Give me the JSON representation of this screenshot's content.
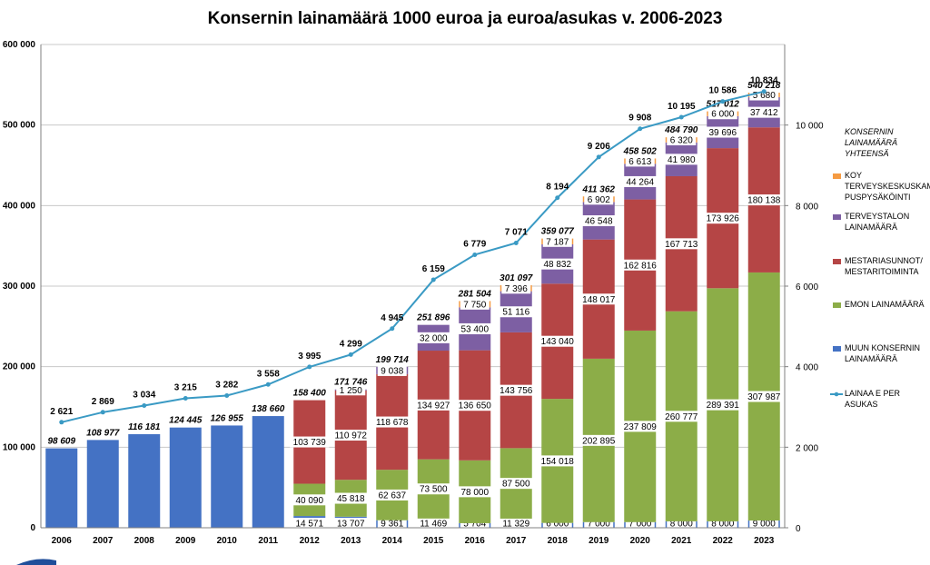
{
  "chart_data": {
    "type": "bar",
    "stacked": true,
    "title": "Konsernin lainamäärä 1000 euroa ja euroa/asukas v. 2006-2023",
    "categories": [
      "2006",
      "2007",
      "2008",
      "2009",
      "2010",
      "2011",
      "2012",
      "2013",
      "2014",
      "2015",
      "2016",
      "2017",
      "2018",
      "2019",
      "2020",
      "2021",
      "2022",
      "2023"
    ],
    "y_left": {
      "min": 0,
      "max": 600000,
      "ticks": [
        "0",
        "100 000",
        "200 000",
        "300 000",
        "400 000",
        "500 000",
        "600 000"
      ]
    },
    "y_right": {
      "min": 0,
      "max": 12000,
      "ticks": [
        "0",
        "2 000",
        "4 000",
        "6 000",
        "8 000",
        "10 000"
      ]
    },
    "grid": true,
    "legend_position": "right",
    "series": [
      {
        "name": "MUUN KONSERNIN LAINAMÄÄRÄ",
        "color": "#4472c4",
        "values": [
          98609,
          108977,
          116181,
          124445,
          126955,
          138660,
          14571,
          13707,
          9361,
          11469,
          5704,
          11329,
          6000,
          7000,
          7000,
          8000,
          8000,
          9000
        ],
        "labels": [
          "",
          "",
          "",
          "",
          "",
          "",
          "14 571",
          "13 707",
          "9 361",
          "11 469",
          "5 704",
          "11 329",
          "6 000",
          "7 000",
          "7 000",
          "8 000",
          "8 000",
          "9 000"
        ]
      },
      {
        "name": "EMON LAINAMÄÄRÄ",
        "color": "#8cad48",
        "values": [
          0,
          0,
          0,
          0,
          0,
          0,
          40090,
          45818,
          62637,
          73500,
          78000,
          87500,
          154018,
          202895,
          237809,
          260777,
          289391,
          307987
        ],
        "labels": [
          "",
          "",
          "",
          "",
          "",
          "",
          "40 090",
          "45 818",
          "62 637",
          "73 500",
          "78 000",
          "87 500",
          "154 018",
          "202 895",
          "237 809",
          "260 777",
          "289 391",
          "307 987"
        ]
      },
      {
        "name": "MESTARIASUNNOT/ MESTARITOIMINTA",
        "color": "#b54545",
        "values": [
          0,
          0,
          0,
          0,
          0,
          0,
          103739,
          110972,
          118678,
          134927,
          136650,
          143756,
          143040,
          148017,
          162816,
          167713,
          173926,
          180138
        ],
        "labels": [
          "",
          "",
          "",
          "",
          "",
          "",
          "103 739",
          "110 972",
          "118 678",
          "134 927",
          "136 650",
          "143 756",
          "143 040",
          "148 017",
          "162 816",
          "167 713",
          "173 926",
          "180 138"
        ]
      },
      {
        "name": "TERVEYSTALON LAINAMÄÄRÄ",
        "color": "#7d5fa3",
        "values": [
          0,
          0,
          0,
          0,
          0,
          0,
          0,
          1250,
          9038,
          32000,
          53400,
          51116,
          48832,
          46548,
          44264,
          41980,
          39696,
          37412
        ],
        "labels": [
          "",
          "",
          "",
          "",
          "",
          "",
          "",
          "1 250",
          "9 038",
          "32 000",
          "53 400",
          "51 116",
          "48 832",
          "46 548",
          "44 264",
          "41 980",
          "39 696",
          "37 412"
        ]
      },
      {
        "name": "KOY TERVEYSKESKUSKAM PUSPYSÄKÖINTI",
        "color": "#f59b42",
        "values": [
          0,
          0,
          0,
          0,
          0,
          0,
          0,
          0,
          0,
          0,
          7750,
          7396,
          7187,
          6902,
          6613,
          6320,
          6000,
          5680
        ],
        "labels": [
          "",
          "",
          "",
          "",
          "",
          "",
          "",
          "",
          "",
          "",
          "7 750",
          "7 396",
          "7 187",
          "6 902",
          "6 613",
          "6 320",
          "6 000",
          "5 680"
        ]
      },
      {
        "name": "LAINAA E PER ASUKAS",
        "type": "line",
        "axis": "right",
        "color": "#3a9ac4",
        "values": [
          2621,
          2869,
          3034,
          3215,
          3282,
          3558,
          3995,
          4299,
          4945,
          6159,
          6779,
          7071,
          8194,
          9206,
          9908,
          10195,
          10586,
          10834
        ],
        "labels": [
          "2 621",
          "2 869",
          "3 034",
          "3 215",
          "3 282",
          "3 558",
          "3 995",
          "4 299",
          "4 945",
          "6 159",
          "6 779",
          "7 071",
          "8 194",
          "9 206",
          "9 908",
          "10 195",
          "10 586",
          "10 834"
        ]
      }
    ],
    "totals": [
      98609,
      108977,
      116181,
      124445,
      126955,
      138660,
      158400,
      171746,
      199714,
      251896,
      281504,
      301097,
      359077,
      411362,
      458502,
      484790,
      517012,
      540218
    ],
    "total_labels": [
      "98 609",
      "108 977",
      "116 181",
      "124 445",
      "126 955",
      "138 660",
      "158 400",
      "171 746",
      "199 714",
      "251 896",
      "281 504",
      "301 097",
      "359 077",
      "411 362",
      "458 502",
      "484 790",
      "517 012",
      "540 218"
    ],
    "legend": {
      "header": "KONSERNIN LAINAMÄÄRÄ YHTEENSÄ",
      "items": [
        {
          "lines": [
            "KOY",
            "TERVEYSKESKUSKAM",
            "PUSPYSÄKÖINTI"
          ],
          "color": "#f59b42",
          "kind": "box"
        },
        {
          "lines": [
            "TERVEYSTALON",
            "LAINAMÄÄRÄ"
          ],
          "color": "#7d5fa3",
          "kind": "box"
        },
        {
          "lines": [
            "MESTARIASUNNOT/",
            "MESTARITOIMINTA"
          ],
          "color": "#b54545",
          "kind": "box"
        },
        {
          "lines": [
            "EMON LAINAMÄÄRÄ"
          ],
          "color": "#8cad48",
          "kind": "box"
        },
        {
          "lines": [
            "MUUN KONSERNIN",
            "LAINAMÄÄRÄ"
          ],
          "color": "#4472c4",
          "kind": "box"
        },
        {
          "lines": [
            "LAINAA E PER",
            "ASUKAS"
          ],
          "color": "#3a9ac4",
          "kind": "line"
        }
      ]
    }
  }
}
